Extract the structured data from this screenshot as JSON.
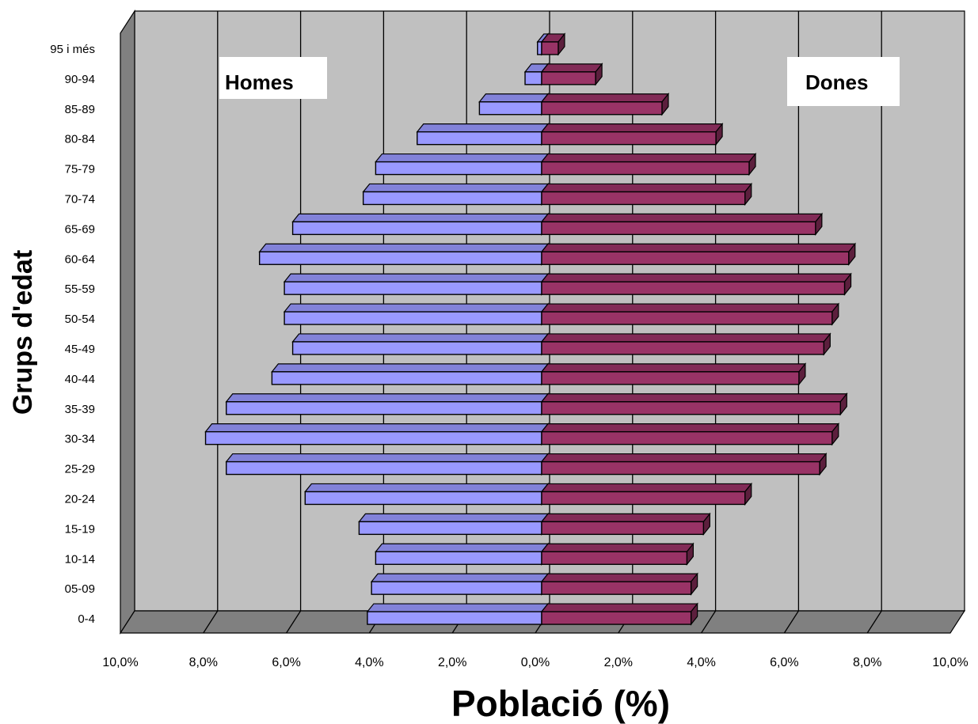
{
  "chart_data": {
    "type": "bar",
    "orientation": "horizontal",
    "style": "population-pyramid-3d",
    "categories": [
      "0-4",
      "05-09",
      "10-14",
      "15-19",
      "20-24",
      "25-29",
      "30-34",
      "35-39",
      "40-44",
      "45-49",
      "50-54",
      "55-59",
      "60-64",
      "65-69",
      "70-74",
      "75-79",
      "80-84",
      "85-89",
      "90-94",
      "95 i més"
    ],
    "series": [
      {
        "name": "Homes",
        "color": "#9999ff",
        "values": [
          4.2,
          4.1,
          4.0,
          4.4,
          5.7,
          7.6,
          8.1,
          7.6,
          6.5,
          6.0,
          6.2,
          6.2,
          6.8,
          6.0,
          4.3,
          4.0,
          3.0,
          1.5,
          0.4,
          0.1
        ]
      },
      {
        "name": "Dones",
        "color": "#993366",
        "values": [
          3.6,
          3.6,
          3.5,
          3.9,
          4.9,
          6.7,
          7.0,
          7.2,
          6.2,
          6.8,
          7.0,
          7.3,
          7.4,
          6.6,
          4.9,
          5.0,
          4.2,
          2.9,
          1.3,
          0.4
        ]
      }
    ],
    "xlabel": "Població (%)",
    "ylabel": "Grups d'edat",
    "xlim": [
      -10,
      10
    ],
    "xticks": [
      "10,0%",
      "8,0%",
      "6,0%",
      "4,0%",
      "2,0%",
      "0,0%",
      "2,0%",
      "4,0%",
      "6,0%",
      "8,0%",
      "10,0%"
    ],
    "grid": true,
    "legend_labels": {
      "left": "Homes",
      "right": "Dones"
    },
    "legend_placement": "inside-top-left / inside-top-right",
    "colors": {
      "wall": "#c0c0c0",
      "floor": "#808080",
      "left_wall": "#808080",
      "gridline": "#000000"
    }
  }
}
